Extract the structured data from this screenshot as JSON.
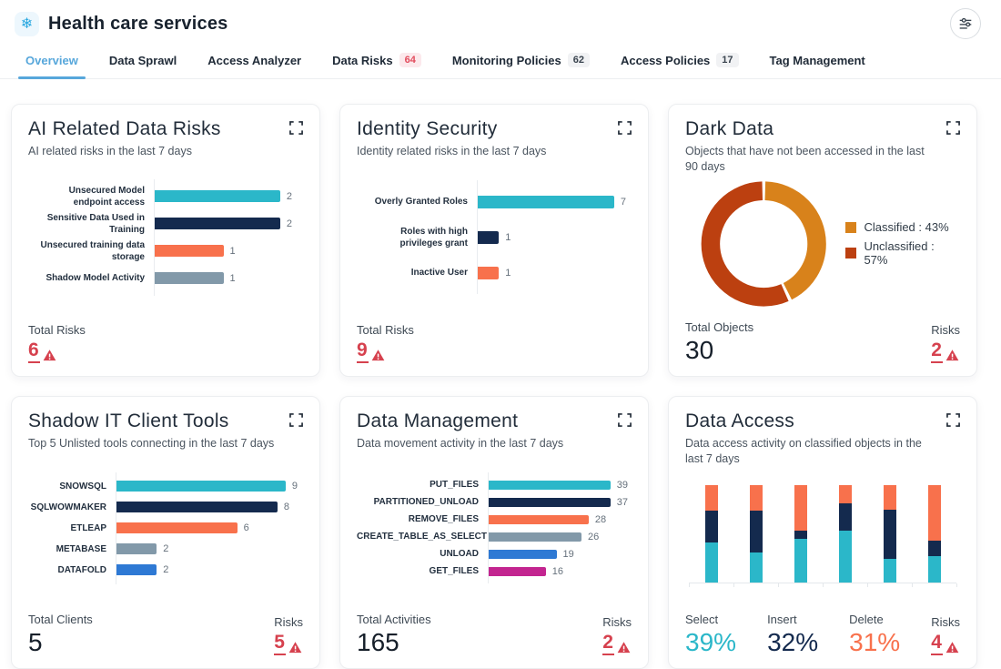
{
  "header": {
    "title": "Health care services",
    "logo_icon": "snowflake-icon",
    "filter_icon": "sliders-icon"
  },
  "tabs": [
    {
      "label": "Overview",
      "active": true
    },
    {
      "label": "Data Sprawl"
    },
    {
      "label": "Access Analyzer"
    },
    {
      "label": "Data Risks",
      "badge": "64",
      "badge_style": "red"
    },
    {
      "label": "Monitoring Policies",
      "badge": "62",
      "badge_style": "gray"
    },
    {
      "label": "Access Policies",
      "badge": "17",
      "badge_style": "gray"
    },
    {
      "label": "Tag Management"
    }
  ],
  "colors": {
    "cyan": "#2BB7C9",
    "navy": "#142A4E",
    "orange": "#F8714C",
    "slate": "#8299A9",
    "blue": "#2E79D4",
    "magenta": "#C32590",
    "donut_classified": "#D8821B",
    "donut_unclassified": "#BC4010",
    "risk_red": "#D6414E",
    "tab_active": "#57A7DB"
  },
  "cards": [
    {
      "title": "AI Related Data Risks",
      "subtitle": "AI related risks in the last 7 days",
      "chart_data": {
        "type": "hbar",
        "max": 2,
        "rows": [
          {
            "label": "Unsecured Model endpoint access",
            "value": 2,
            "color": "cyan"
          },
          {
            "label": "Sensitive Data Used in Training",
            "value": 2,
            "color": "navy"
          },
          {
            "label": "Unsecured training data storage",
            "value": 1,
            "color": "orange"
          },
          {
            "label": "Shadow Model Activity",
            "value": 1,
            "color": "slate"
          }
        ]
      },
      "stats": [
        {
          "label": "Total Risks",
          "value": "6",
          "risk": true
        }
      ]
    },
    {
      "title": "Identity Security",
      "subtitle": "Identity related risks in the last 7 days",
      "chart_data": {
        "type": "hbar",
        "max": 7,
        "rows": [
          {
            "label": "Overly Granted Roles",
            "value": 7,
            "color": "cyan"
          },
          {
            "label": "Roles with high privileges grant",
            "value": 1,
            "color": "navy"
          },
          {
            "label": "Inactive User",
            "value": 1,
            "color": "orange"
          }
        ]
      },
      "stats": [
        {
          "label": "Total Risks",
          "value": "9",
          "risk": true
        }
      ]
    },
    {
      "title": "Dark Data",
      "subtitle": "Objects that have not been accessed in the last 90 days",
      "chart_data": {
        "type": "donut",
        "slices": [
          {
            "label": "Classified",
            "pct": 43,
            "color": "donut_classified",
            "legend": "Classified : 43%"
          },
          {
            "label": "Unclassified",
            "pct": 57,
            "color": "donut_unclassified",
            "legend": "Unclassified : 57%"
          }
        ]
      },
      "stats": [
        {
          "label": "Total Objects",
          "value": "30"
        },
        {
          "label": "Risks",
          "value": "2",
          "risk": true
        }
      ]
    },
    {
      "title": "Shadow IT Client Tools",
      "subtitle": "Top 5 Unlisted tools connecting in the last 7 days",
      "chart_data": {
        "type": "hbar",
        "max": 9,
        "rows": [
          {
            "label": "SNOWSQL",
            "value": 9,
            "color": "cyan"
          },
          {
            "label": "SQLWOWMAKER",
            "value": 8,
            "color": "navy"
          },
          {
            "label": "ETLEAP",
            "value": 6,
            "color": "orange"
          },
          {
            "label": "METABASE",
            "value": 2,
            "color": "slate"
          },
          {
            "label": "DATAFOLD",
            "value": 2,
            "color": "blue"
          }
        ]
      },
      "stats": [
        {
          "label": "Total Clients",
          "value": "5"
        },
        {
          "label": "Risks",
          "value": "5",
          "risk": true
        }
      ]
    },
    {
      "title": "Data Management",
      "subtitle": "Data movement activity in the last 7 days",
      "chart_data": {
        "type": "hbar",
        "max": 39,
        "rows": [
          {
            "label": "PUT_FILES",
            "value": 39,
            "color": "cyan"
          },
          {
            "label": "PARTITIONED_UNLOAD",
            "value": 37,
            "color": "navy"
          },
          {
            "label": "REMOVE_FILES",
            "value": 28,
            "color": "orange"
          },
          {
            "label": "CREATE_TABLE_AS_SELECT",
            "value": 26,
            "color": "slate"
          },
          {
            "label": "UNLOAD",
            "value": 19,
            "color": "blue"
          },
          {
            "label": "GET_FILES",
            "value": 16,
            "color": "magenta"
          }
        ]
      },
      "stats": [
        {
          "label": "Total Activities",
          "value": "165"
        },
        {
          "label": "Risks",
          "value": "2",
          "risk": true
        }
      ]
    },
    {
      "title": "Data Access",
      "subtitle": "Data access activity on classified objects in the last 7 days",
      "chart_data": {
        "type": "stacked",
        "columns": 6,
        "series": [
          {
            "name": "Select",
            "color": "cyan",
            "values": [
              41,
              31,
              45,
              53,
              24,
              27
            ]
          },
          {
            "name": "Insert",
            "color": "navy",
            "values": [
              33,
              43,
              8,
              28,
              51,
              16
            ]
          },
          {
            "name": "Delete",
            "color": "orange",
            "values": [
              26,
              26,
              47,
              19,
              25,
              57
            ]
          }
        ]
      },
      "stats": [
        {
          "label": "Select",
          "value": "39%",
          "color": "cyan"
        },
        {
          "label": "Insert",
          "value": "32%",
          "color": "navy"
        },
        {
          "label": "Delete",
          "value": "31%",
          "color": "orange"
        },
        {
          "label": "Risks",
          "value": "4",
          "risk": true
        }
      ]
    }
  ]
}
